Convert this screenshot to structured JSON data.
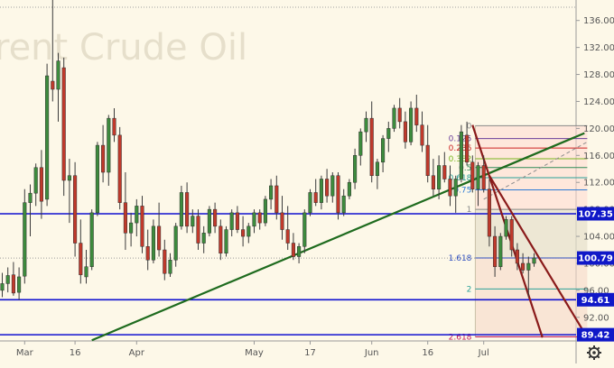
{
  "watermark": "rent Crude Oil",
  "chart_data": {
    "type": "candlestick",
    "y_axis": {
      "ticks": [
        92,
        96,
        100,
        104,
        108,
        112,
        116,
        120,
        124,
        128,
        132,
        136
      ],
      "range": [
        88.5,
        138.5
      ],
      "side": "right"
    },
    "x_axis": {
      "ticks": [
        {
          "label": "Mar",
          "index": 4
        },
        {
          "label": "16",
          "index": 13
        },
        {
          "label": "Apr",
          "index": 24
        },
        {
          "label": "May",
          "index": 45
        },
        {
          "label": "17",
          "index": 55
        },
        {
          "label": "Jun",
          "index": 66
        },
        {
          "label": "16",
          "index": 76
        },
        {
          "label": "Jul",
          "index": 86
        }
      ]
    },
    "price_badges": [
      {
        "value": "107.35",
        "color": "#1018c8"
      },
      {
        "value": "100.79",
        "color": "#1018c8"
      },
      {
        "value": "94.61",
        "color": "#1018c8"
      },
      {
        "value": "89.42",
        "color": "#1018c8"
      }
    ],
    "horizontal_lines": [
      {
        "price": 107.35,
        "color": "#1010d0"
      },
      {
        "price": 94.61,
        "color": "#1010d0"
      },
      {
        "price": 89.42,
        "color": "#1010d0"
      }
    ],
    "trendline": {
      "color": "#1e6b1e",
      "from": {
        "i": 16,
        "p": 88.6
      },
      "to": {
        "i": 104,
        "p": 119.3
      }
    },
    "channel_lines": [
      {
        "color": "#8a1a1a",
        "from": {
          "i": 84,
          "p": 120.5
        },
        "to": {
          "i": 96.5,
          "p": 89.0
        }
      },
      {
        "color": "#8a1a1a",
        "from": {
          "i": 87,
          "p": 113.0
        },
        "to": {
          "i": 104.5,
          "p": 89.0
        }
      }
    ],
    "fibonacci": {
      "x_from": 84.5,
      "x_to": 104.5,
      "levels": [
        {
          "label": "0",
          "price": 120.4,
          "color": "#888888"
        },
        {
          "label": "0.125",
          "price": 118.5,
          "color": "#6a3d9a"
        },
        {
          "label": "0.236",
          "price": 117.1,
          "color": "#cc2222"
        },
        {
          "label": "0.382",
          "price": 115.5,
          "color": "#7ab51d"
        },
        {
          "label": "0.5",
          "price": 114.2,
          "color": "#2e8b57"
        },
        {
          "label": "0.618",
          "price": 112.7,
          "color": "#2aa198"
        },
        {
          "label": "0.75",
          "price": 110.9,
          "color": "#2b7bd6"
        },
        {
          "label": "1",
          "price": 108.0,
          "color": "#888888"
        },
        {
          "label": "1.618",
          "price": 100.8,
          "color": "#3050c0"
        },
        {
          "label": "2",
          "price": 96.2,
          "color": "#2aa198"
        },
        {
          "label": "2.618",
          "price": 89.1,
          "color": "#c2185b"
        }
      ]
    },
    "candles": [
      [
        96.0,
        98.6,
        95.0,
        97.0
      ],
      [
        97.0,
        99.4,
        95.7,
        98.2
      ],
      [
        98.3,
        100.2,
        95.2,
        95.6
      ],
      [
        95.7,
        99.4,
        94.6,
        98.0
      ],
      [
        98.1,
        111.0,
        97.0,
        109.0
      ],
      [
        109.0,
        111.7,
        104.0,
        110.4
      ],
      [
        110.4,
        114.8,
        108.5,
        114.2
      ],
      [
        114.2,
        116.8,
        106.6,
        109.2
      ],
      [
        109.5,
        129.6,
        108.5,
        127.8
      ],
      [
        127.0,
        139.2,
        124.0,
        125.8
      ],
      [
        125.8,
        131.2,
        121.0,
        130.0
      ],
      [
        129.0,
        130.5,
        110.0,
        112.3
      ],
      [
        112.3,
        115.5,
        106.0,
        113.0
      ],
      [
        113.0,
        115.0,
        101.0,
        103.0
      ],
      [
        103.0,
        106.5,
        97.0,
        98.3
      ],
      [
        98.0,
        102.0,
        97.0,
        99.5
      ],
      [
        99.5,
        108.0,
        99.0,
        107.5
      ],
      [
        107.5,
        118.0,
        107.0,
        117.5
      ],
      [
        117.5,
        120.5,
        112.0,
        113.5
      ],
      [
        113.5,
        122.0,
        111.5,
        121.5
      ],
      [
        121.5,
        123.0,
        118.0,
        119.0
      ],
      [
        119.0,
        120.2,
        108.0,
        109.0
      ],
      [
        109.0,
        113.5,
        102.0,
        104.5
      ],
      [
        104.5,
        107.5,
        102.5,
        106.0
      ],
      [
        106.0,
        109.5,
        104.0,
        108.5
      ],
      [
        108.5,
        110.0,
        101.5,
        102.5
      ],
      [
        102.5,
        105.0,
        99.0,
        100.5
      ],
      [
        100.5,
        106.5,
        100.0,
        105.5
      ],
      [
        105.5,
        109.0,
        101.0,
        102.0
      ],
      [
        102.0,
        103.5,
        97.5,
        98.5
      ],
      [
        98.5,
        101.5,
        98.0,
        100.5
      ],
      [
        100.5,
        106.0,
        99.5,
        105.5
      ],
      [
        105.5,
        111.5,
        105.0,
        110.5
      ],
      [
        110.5,
        112.0,
        104.5,
        105.5
      ],
      [
        105.5,
        108.0,
        104.5,
        107.0
      ],
      [
        107.0,
        108.0,
        102.0,
        103.0
      ],
      [
        103.0,
        105.5,
        101.5,
        104.5
      ],
      [
        104.5,
        108.5,
        104.0,
        108.0
      ],
      [
        108.0,
        109.0,
        104.5,
        105.5
      ],
      [
        105.5,
        106.5,
        100.5,
        101.5
      ],
      [
        101.5,
        105.5,
        101.0,
        105.0
      ],
      [
        105.0,
        108.0,
        104.0,
        107.5
      ],
      [
        107.5,
        108.5,
        104.5,
        105.0
      ],
      [
        105.0,
        107.0,
        102.5,
        104.0
      ],
      [
        104.0,
        106.0,
        103.0,
        105.5
      ],
      [
        105.5,
        108.0,
        104.5,
        107.5
      ],
      [
        107.5,
        108.0,
        105.0,
        106.0
      ],
      [
        106.0,
        110.0,
        105.5,
        109.5
      ],
      [
        109.5,
        112.5,
        108.0,
        111.5
      ],
      [
        111.5,
        113.0,
        106.5,
        107.5
      ],
      [
        107.5,
        110.0,
        103.5,
        105.0
      ],
      [
        105.0,
        108.5,
        102.0,
        103.0
      ],
      [
        103.0,
        104.5,
        100.5,
        101.0
      ],
      [
        101.0,
        103.0,
        100.0,
        102.5
      ],
      [
        102.5,
        108.0,
        101.5,
        107.5
      ],
      [
        107.5,
        111.0,
        107.0,
        110.5
      ],
      [
        110.5,
        112.5,
        108.5,
        109.0
      ],
      [
        109.0,
        113.0,
        108.0,
        112.5
      ],
      [
        112.5,
        114.0,
        109.0,
        110.0
      ],
      [
        110.0,
        113.5,
        109.0,
        113.0
      ],
      [
        113.0,
        113.5,
        106.5,
        107.5
      ],
      [
        107.5,
        111.0,
        107.0,
        110.0
      ],
      [
        110.0,
        112.5,
        109.5,
        112.0
      ],
      [
        112.0,
        117.0,
        111.0,
        116.0
      ],
      [
        116.0,
        120.0,
        114.5,
        119.5
      ],
      [
        119.5,
        122.5,
        118.0,
        121.5
      ],
      [
        121.5,
        124.0,
        112.0,
        113.0
      ],
      [
        113.0,
        115.5,
        111.0,
        115.0
      ],
      [
        115.0,
        119.0,
        113.5,
        118.5
      ],
      [
        118.5,
        121.0,
        116.5,
        120.0
      ],
      [
        120.0,
        123.5,
        119.5,
        123.0
      ],
      [
        123.0,
        124.5,
        120.0,
        121.0
      ],
      [
        121.0,
        122.5,
        117.0,
        118.0
      ],
      [
        118.0,
        124.0,
        117.5,
        123.0
      ],
      [
        123.0,
        125.0,
        119.5,
        120.5
      ],
      [
        120.5,
        122.5,
        116.5,
        117.5
      ],
      [
        117.5,
        120.5,
        112.0,
        113.0
      ],
      [
        113.0,
        115.5,
        110.0,
        111.0
      ],
      [
        111.0,
        116.0,
        109.5,
        114.5
      ],
      [
        114.5,
        116.5,
        112.0,
        112.5
      ],
      [
        112.5,
        114.5,
        108.5,
        110.0
      ],
      [
        110.0,
        113.0,
        107.5,
        112.5
      ],
      [
        112.5,
        120.5,
        112.0,
        119.5
      ],
      [
        119.0,
        121.0,
        114.5,
        115.0
      ],
      [
        115.0,
        116.0,
        110.5,
        111.0
      ],
      [
        111.0,
        115.0,
        108.5,
        114.5
      ],
      [
        114.5,
        116.0,
        110.5,
        111.0
      ],
      [
        111.0,
        112.5,
        102.5,
        104.0
      ],
      [
        104.0,
        105.5,
        98.0,
        99.5
      ],
      [
        99.5,
        104.5,
        99.0,
        104.0
      ],
      [
        104.0,
        107.0,
        103.5,
        106.5
      ],
      [
        106.5,
        107.0,
        101.0,
        102.0
      ],
      [
        102.0,
        103.0,
        99.0,
        100.0
      ],
      [
        100.0,
        101.5,
        98.5,
        99.0
      ],
      [
        99.0,
        101.0,
        95.0,
        100.0
      ],
      [
        100.0,
        101.5,
        99.5,
        100.8
      ]
    ]
  }
}
